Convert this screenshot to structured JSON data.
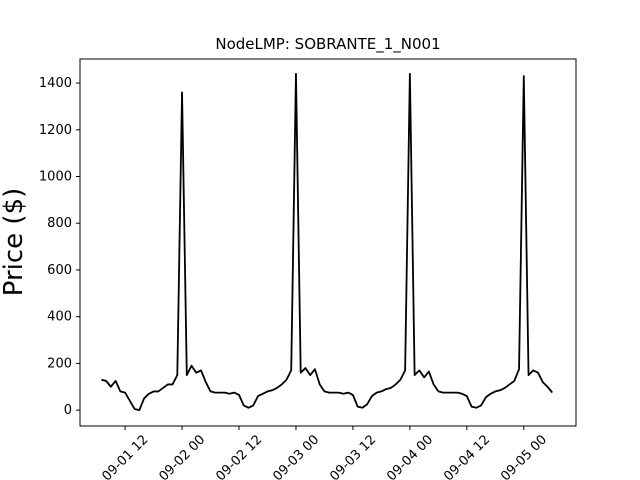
{
  "chart_data": {
    "type": "line",
    "title": "NodeLMP: SOBRANTE_1_N001",
    "y_label": "Price ($)",
    "x": [
      7,
      8,
      9,
      10,
      11,
      12,
      13,
      14,
      15,
      16,
      17,
      18,
      19,
      20,
      21,
      22,
      23,
      24,
      25,
      26,
      27,
      28,
      29,
      30,
      31,
      32,
      33,
      34,
      35,
      36,
      37,
      38,
      39,
      40,
      41,
      42,
      43,
      44,
      45,
      46,
      47,
      48,
      49,
      50,
      51,
      52,
      53,
      54,
      55,
      56,
      57,
      58,
      59,
      60,
      61,
      62,
      63,
      64,
      65,
      66,
      67,
      68,
      69,
      70,
      71,
      72,
      73,
      74,
      75,
      76,
      77,
      78,
      79,
      80,
      81,
      82,
      83,
      84,
      85,
      86,
      87,
      88,
      89,
      90,
      91,
      92,
      93,
      94,
      95,
      96,
      97,
      98,
      99,
      100,
      101,
      102
    ],
    "series": [
      {
        "name": "SOBRANTE_1_N001",
        "color": "#000000",
        "values": [
          130,
          125,
          100,
          125,
          80,
          75,
          40,
          5,
          0,
          50,
          70,
          80,
          80,
          95,
          110,
          110,
          150,
          1360,
          150,
          190,
          160,
          170,
          120,
          80,
          75,
          75,
          75,
          70,
          75,
          65,
          20,
          10,
          20,
          60,
          70,
          80,
          85,
          95,
          110,
          130,
          170,
          1440,
          160,
          180,
          150,
          175,
          110,
          80,
          75,
          75,
          75,
          70,
          75,
          65,
          15,
          10,
          25,
          60,
          75,
          80,
          90,
          95,
          110,
          130,
          170,
          1440,
          150,
          170,
          140,
          165,
          110,
          80,
          75,
          75,
          75,
          75,
          70,
          60,
          15,
          10,
          20,
          55,
          70,
          80,
          85,
          95,
          110,
          125,
          175,
          1430,
          150,
          170,
          160,
          120,
          100,
          75
        ]
      }
    ],
    "xlim": [
      2.5,
      107
    ],
    "xticks": [
      {
        "value": 12,
        "label": "09-01 12"
      },
      {
        "value": 24,
        "label": "09-02 00"
      },
      {
        "value": 36,
        "label": "09-02 12"
      },
      {
        "value": 48,
        "label": "09-03 00"
      },
      {
        "value": 60,
        "label": "09-03 12"
      },
      {
        "value": 72,
        "label": "09-04 00"
      },
      {
        "value": 84,
        "label": "09-04 12"
      },
      {
        "value": 96,
        "label": "09-05 00"
      }
    ],
    "ylim": [
      -68,
      1503
    ],
    "yticks": [
      0,
      200,
      400,
      600,
      800,
      1000,
      1200,
      1400
    ]
  }
}
